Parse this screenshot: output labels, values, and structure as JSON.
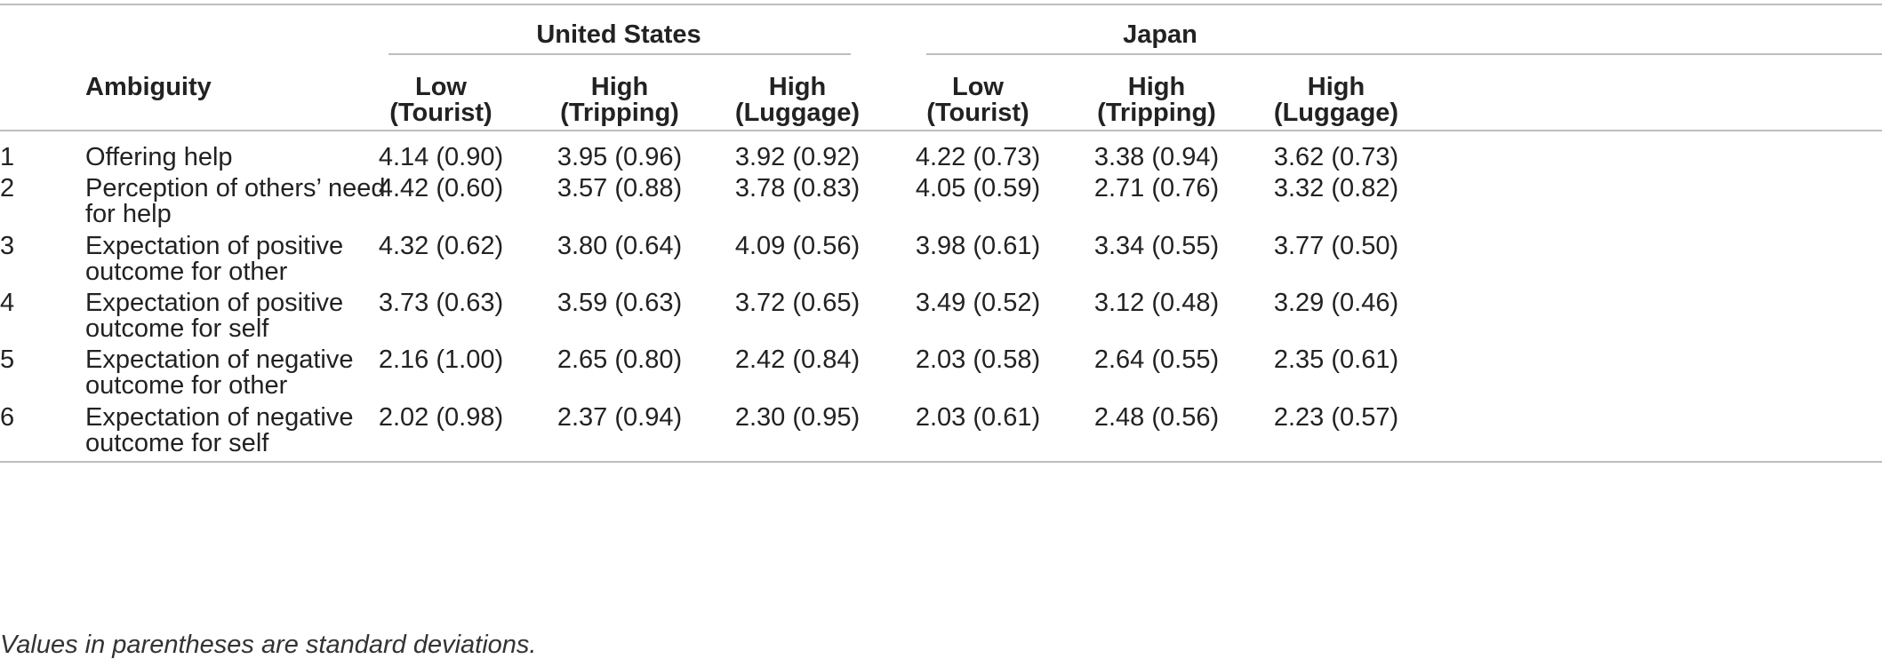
{
  "table": {
    "group_headers": [
      "United States",
      "Japan"
    ],
    "row_header": "Ambiguity",
    "columns": [
      {
        "line1": "Low",
        "line2": "(Tourist)"
      },
      {
        "line1": "High",
        "line2": "(Tripping)"
      },
      {
        "line1": "High",
        "line2": "(Luggage)"
      },
      {
        "line1": "Low",
        "line2": "(Tourist)"
      },
      {
        "line1": "High",
        "line2": "(Tripping)"
      },
      {
        "line1": "High",
        "line2": "(Luggage)"
      }
    ],
    "rows": [
      {
        "num": "1",
        "label_line1": "Offering help",
        "label_line2": "",
        "values": [
          "4.14 (0.90)",
          "3.95 (0.96)",
          "3.92 (0.92)",
          "4.22 (0.73)",
          "3.38 (0.94)",
          "3.62 (0.73)"
        ]
      },
      {
        "num": "2",
        "label_line1": "Perception of others’ need",
        "label_line2": "for help",
        "values": [
          "4.42 (0.60)",
          "3.57 (0.88)",
          "3.78 (0.83)",
          "4.05 (0.59)",
          "2.71 (0.76)",
          "3.32 (0.82)"
        ]
      },
      {
        "num": "3",
        "label_line1": "Expectation of positive",
        "label_line2": "outcome for other",
        "values": [
          "4.32 (0.62)",
          "3.80 (0.64)",
          "4.09 (0.56)",
          "3.98 (0.61)",
          "3.34 (0.55)",
          "3.77 (0.50)"
        ]
      },
      {
        "num": "4",
        "label_line1": "Expectation of positive",
        "label_line2": "outcome for self",
        "values": [
          "3.73 (0.63)",
          "3.59 (0.63)",
          "3.72 (0.65)",
          "3.49 (0.52)",
          "3.12 (0.48)",
          "3.29 (0.46)"
        ]
      },
      {
        "num": "5",
        "label_line1": "Expectation of negative",
        "label_line2": "outcome for other",
        "values": [
          "2.16 (1.00)",
          "2.65 (0.80)",
          "2.42 (0.84)",
          "2.03 (0.58)",
          "2.64 (0.55)",
          "2.35 (0.61)"
        ]
      },
      {
        "num": "6",
        "label_line1": "Expectation of negative",
        "label_line2": "outcome for self",
        "values": [
          "2.02 (0.98)",
          "2.37 (0.94)",
          "2.30 (0.95)",
          "2.03 (0.61)",
          "2.48 (0.56)",
          "2.23 (0.57)"
        ]
      }
    ],
    "footnote": "Values in parentheses are standard deviations."
  }
}
